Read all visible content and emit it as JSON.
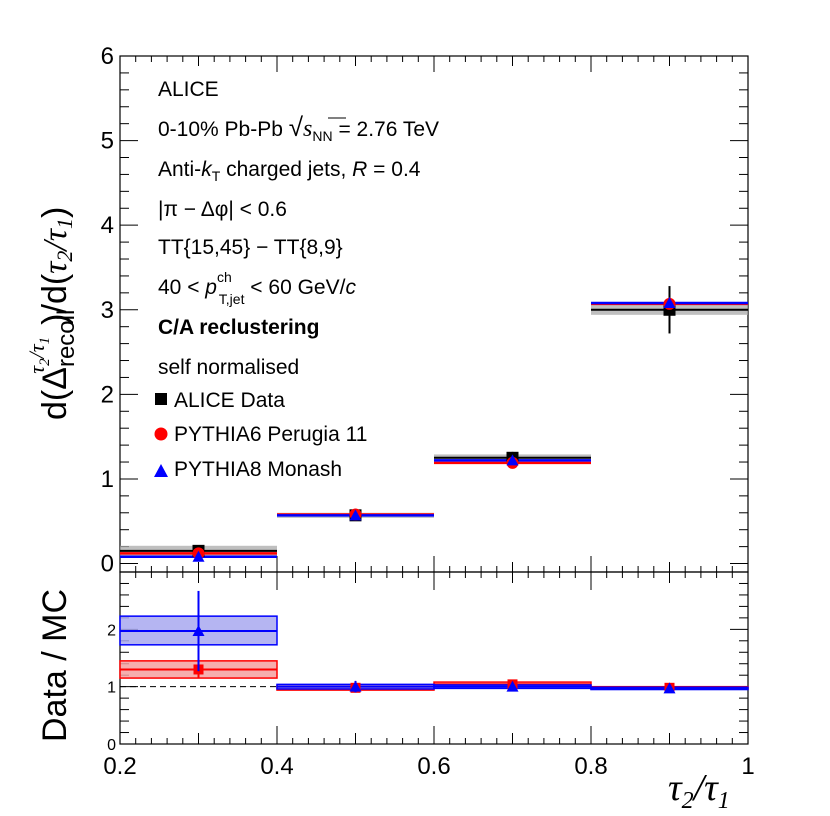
{
  "chart_data": [
    {
      "type": "scatter",
      "panel": "main",
      "xlabel": "τ2/τ1",
      "ylabel": "d(Δrecoil^(τ2/τ1))/d(τ2/τ1)",
      "xlim": [
        0.2,
        1.0
      ],
      "ylim": [
        -0.1,
        6
      ],
      "x_ticks": [
        "0.2",
        "0.4",
        "0.6",
        "0.8",
        "1"
      ],
      "y_ticks": [
        "0",
        "1",
        "2",
        "3",
        "4",
        "5",
        "6"
      ],
      "bins": [
        [
          0.2,
          0.4
        ],
        [
          0.4,
          0.6
        ],
        [
          0.6,
          0.8
        ],
        [
          0.8,
          1.0
        ]
      ],
      "x": [
        0.3,
        0.5,
        0.7,
        0.9
      ],
      "series": [
        {
          "name": "ALICE Data",
          "marker": "square",
          "color": "#000000",
          "values": [
            0.15,
            0.57,
            1.25,
            3.0
          ],
          "stat_err": [
            0.05,
            0.03,
            0.07,
            0.28
          ],
          "syst": [
            0.06,
            0.03,
            0.04,
            0.06
          ],
          "syst_color": "#aaaaaa"
        },
        {
          "name": "PYTHIA6 Perugia 11",
          "marker": "circle",
          "color": "#ff0000",
          "values": [
            0.12,
            0.58,
            1.19,
            3.07
          ]
        },
        {
          "name": "PYTHIA8 Monash",
          "marker": "triangle",
          "color": "#0000ff",
          "values": [
            0.08,
            0.57,
            1.22,
            3.08
          ]
        }
      ],
      "annotations": {
        "experiment": "ALICE",
        "system_pre": "0-10% Pb-Pb ",
        "energy_var": "s",
        "energy_sub": "NN",
        "energy_post": " = 2.76 TeV",
        "jets_pre": "Anti-",
        "jets_k": "k",
        "jets_k_sub": "T",
        "jets_post": "  charged jets, ",
        "jets_R": "R",
        "jets_R_val": " = 0.4",
        "dphi": "|π − Δφ| < 0.6",
        "tt": "TT{15,45} − TT{8,9}",
        "pt_pre": "40 < ",
        "pt_var": "p",
        "pt_sup": "ch",
        "pt_sub": "T,jet",
        "pt_post": " < 60 GeV/",
        "pt_c": "c",
        "recluster": "C/A reclustering",
        "norm": "self normalised"
      },
      "legend_position": "top-left"
    },
    {
      "type": "scatter",
      "panel": "ratio",
      "xlabel": "τ2/τ1",
      "ylabel": "Data / MC",
      "xlim": [
        0.2,
        1.0
      ],
      "ylim": [
        0,
        3
      ],
      "y_ticks": [
        "0",
        "1",
        "2"
      ],
      "reference_line": 1,
      "x": [
        0.3,
        0.5,
        0.7,
        0.9
      ],
      "series": [
        {
          "name": "PYTHIA6 Perugia 11",
          "color": "#ff0000",
          "fill": "#f4a0a0",
          "values": [
            1.3,
            0.98,
            1.04,
            0.98
          ],
          "err": [
            0.15,
            0.04,
            0.05,
            0.03
          ],
          "box_lo": [
            1.15,
            0.94,
            1.0,
            0.96
          ],
          "box_hi": [
            1.45,
            1.02,
            1.08,
            1.0
          ]
        },
        {
          "name": "PYTHIA8 Monash",
          "color": "#0000ff",
          "fill": "#a8a8f0",
          "values": [
            1.97,
            1.0,
            1.0,
            0.97
          ],
          "err": [
            0.7,
            0.1,
            0.05,
            0.03
          ],
          "box_lo": [
            1.73,
            0.96,
            0.97,
            0.95
          ],
          "box_hi": [
            2.23,
            1.04,
            1.03,
            0.99
          ]
        }
      ]
    }
  ]
}
